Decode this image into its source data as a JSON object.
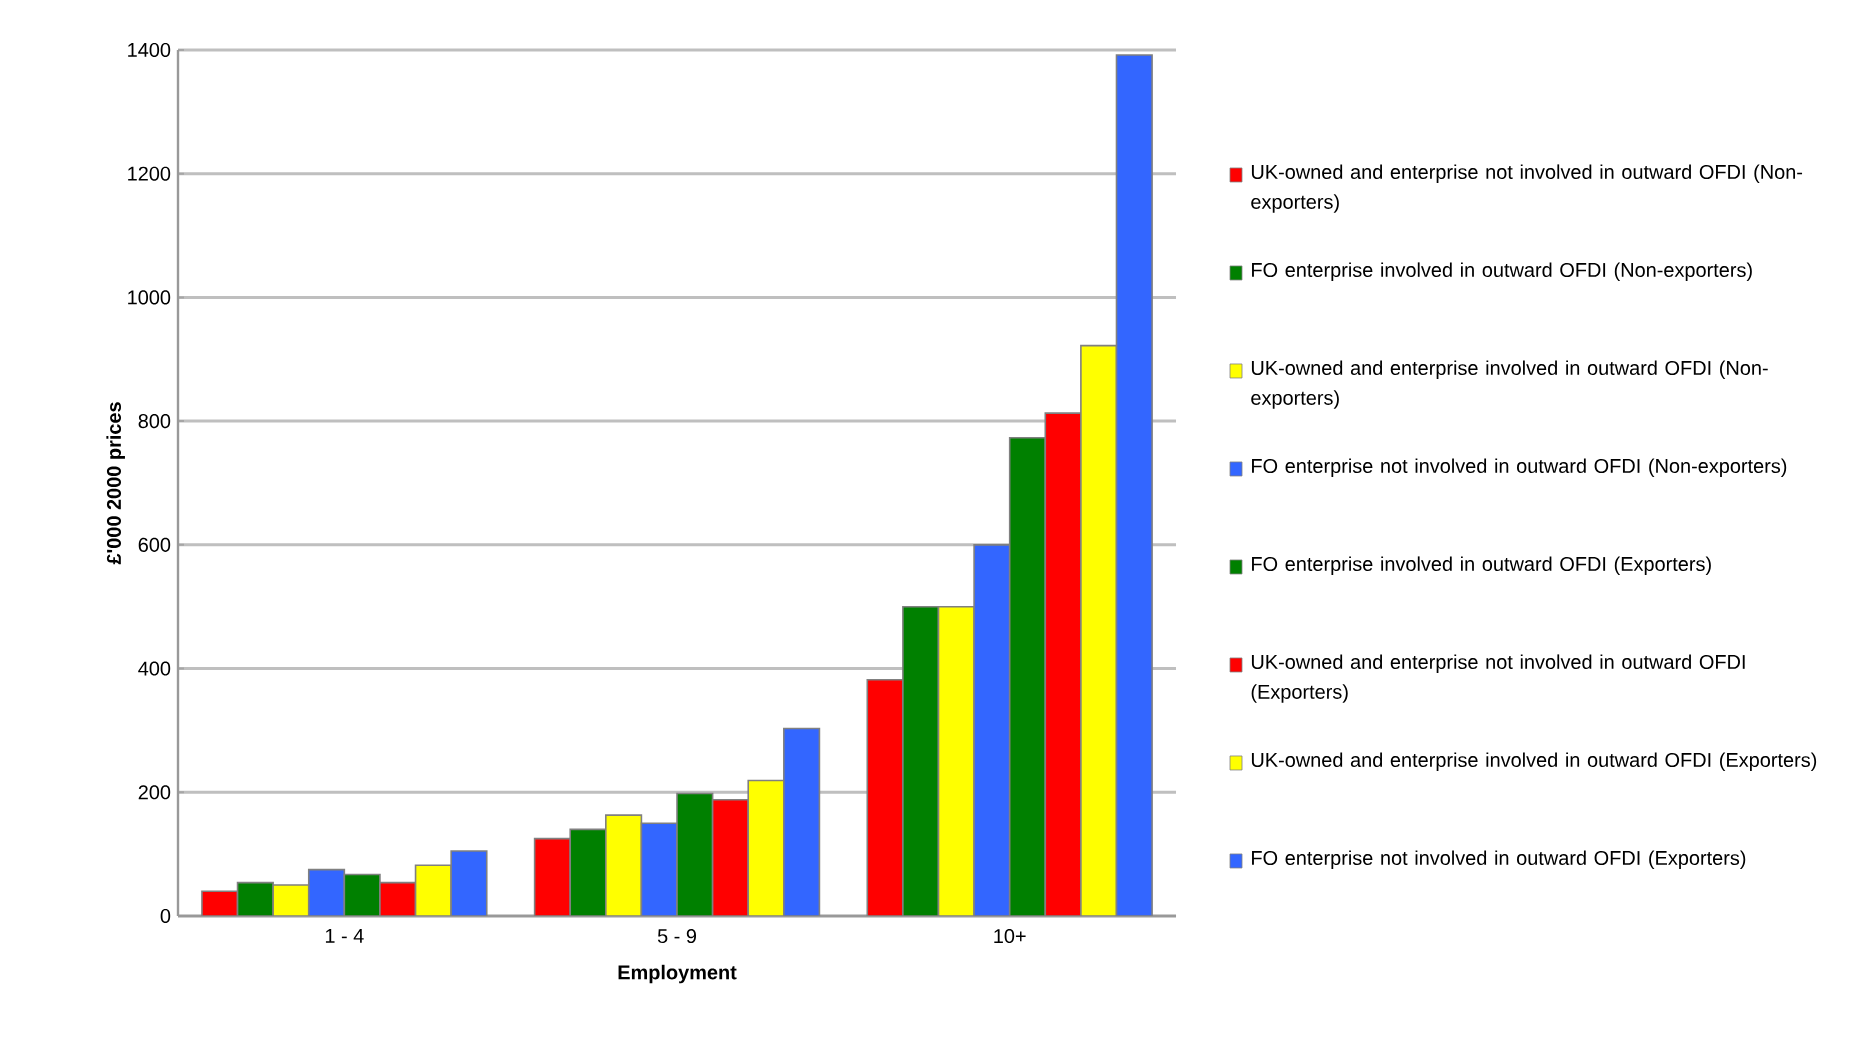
{
  "chart_data": {
    "type": "bar",
    "xlabel": "Employment",
    "ylabel": "£'000 2000 prices",
    "categories": [
      "1 - 4",
      "5 - 9",
      "10+"
    ],
    "series": [
      {
        "name": "UK-owned and enterprise not involved in outward OFDI (Non-exporters)",
        "color": "#ff0000",
        "values": [
          40,
          125,
          382
        ]
      },
      {
        "name": "FO enterprise involved in outward OFDI (Non-exporters)",
        "color": "#008000",
        "values": [
          54,
          140,
          500
        ]
      },
      {
        "name": "UK-owned and enterprise involved in outward OFDI (Non-exporters)",
        "color": "#ffff00",
        "values": [
          50,
          163,
          500
        ]
      },
      {
        "name": "FO enterprise not involved in outward OFDI (Non-exporters)",
        "color": "#3366ff",
        "values": [
          75,
          150,
          600
        ]
      },
      {
        "name": "FO enterprise involved in outward OFDI (Exporters)",
        "color": "#008000",
        "values": [
          67,
          198,
          773
        ]
      },
      {
        "name": "UK-owned and enterprise not involved in outward OFDI (Exporters)",
        "color": "#ff0000",
        "values": [
          54,
          188,
          813
        ]
      },
      {
        "name": "UK-owned and enterprise involved in outward OFDI (Exporters)",
        "color": "#ffff00",
        "values": [
          82,
          219,
          922
        ]
      },
      {
        "name": "FO enterprise not involved in outward OFDI (Exporters)",
        "color": "#3366ff",
        "values": [
          105,
          303,
          1392
        ]
      }
    ],
    "ylim": [
      0,
      1400
    ],
    "yticks": [
      0,
      200,
      400,
      600,
      800,
      1000,
      1200,
      1400
    ],
    "grid": "y",
    "legend": "right"
  }
}
